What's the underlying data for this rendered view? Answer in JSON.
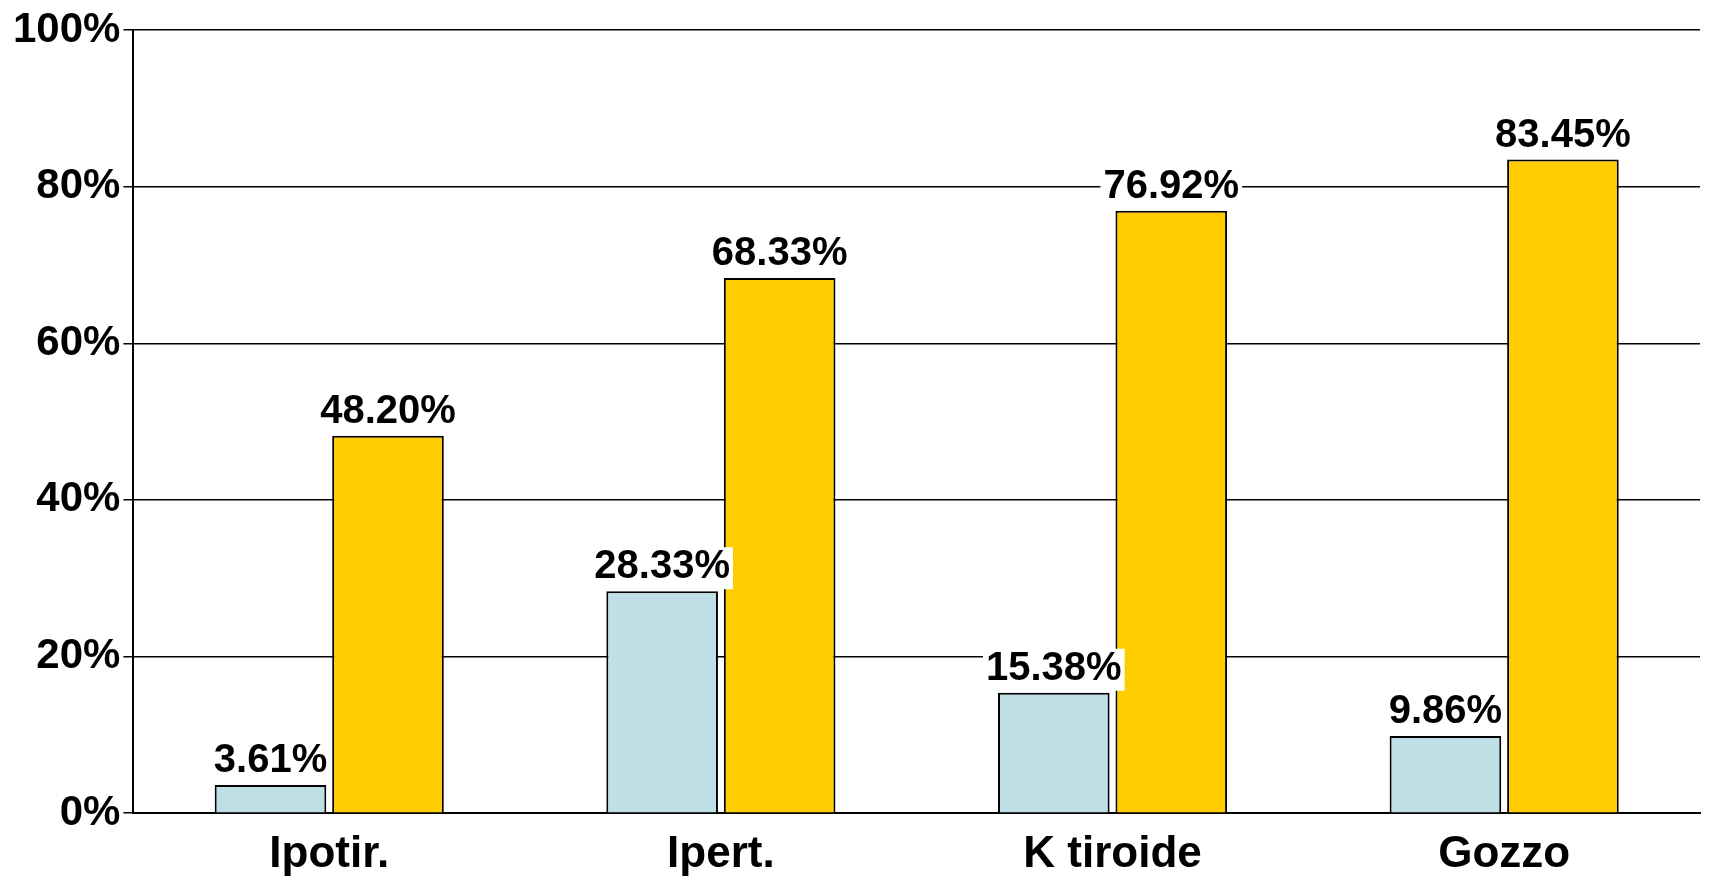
{
  "chart_data": {
    "type": "bar",
    "categories": [
      "Ipotir.",
      "Ipert.",
      "K tiroide",
      "Gozzo"
    ],
    "series": [
      {
        "color": "#bddfe5",
        "values": [
          3.61,
          28.33,
          15.38,
          9.86
        ],
        "value_labels": [
          "3.61%",
          "28.33%",
          "15.38%",
          "9.86%"
        ]
      },
      {
        "color": "#ffcc00",
        "values": [
          48.2,
          68.33,
          76.92,
          83.45
        ],
        "value_labels": [
          "48.20%",
          "68.33%",
          "76.92%",
          "83.45%"
        ]
      }
    ],
    "ylim": [
      0,
      100
    ],
    "yticks": [
      {
        "value": 0,
        "label": "0%"
      },
      {
        "value": 20,
        "label": "20%"
      },
      {
        "value": 40,
        "label": "40%"
      },
      {
        "value": 60,
        "label": "60%"
      },
      {
        "value": 80,
        "label": "80%"
      },
      {
        "value": 100,
        "label": "100%"
      }
    ],
    "grid": "y",
    "legend": false
  }
}
